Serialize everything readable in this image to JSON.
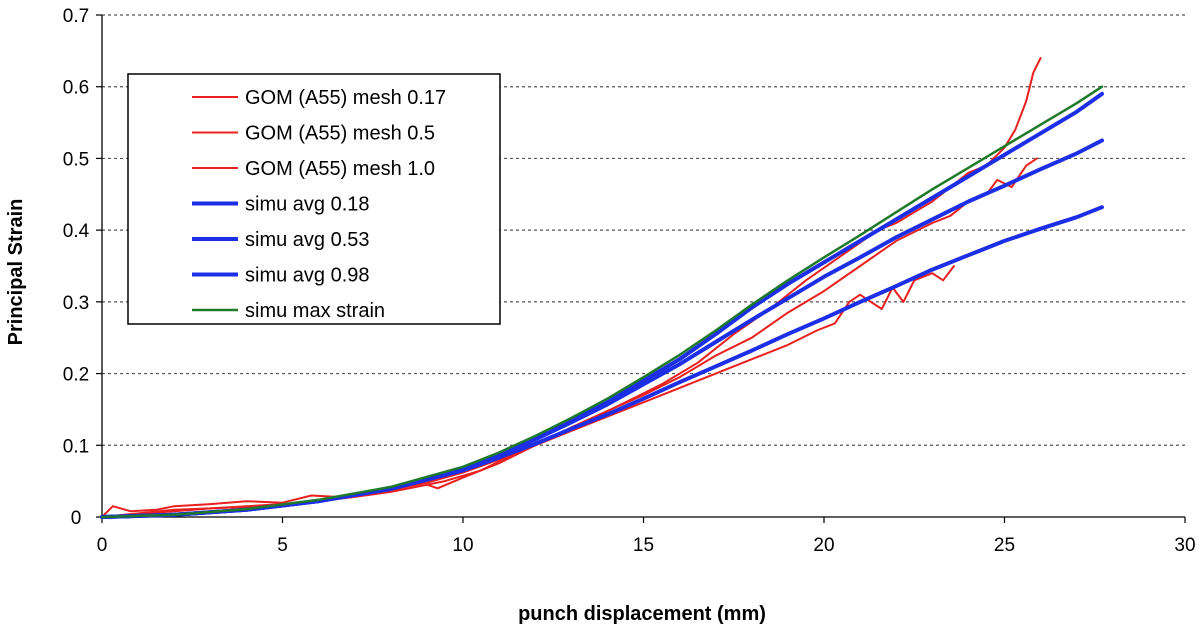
{
  "chart_data": {
    "type": "line",
    "xlabel": "punch displacement (mm)",
    "ylabel": "Principal Strain",
    "xlim": [
      0,
      30
    ],
    "ylim": [
      0,
      0.7
    ],
    "x_ticks": [
      "0",
      "5",
      "10",
      "15",
      "20",
      "25",
      "30"
    ],
    "y_ticks": [
      "0",
      "0.1",
      "0.2",
      "0.3",
      "0.4",
      "0.5",
      "0.6",
      "0.7"
    ],
    "grid": "horizontal dotted",
    "legend_position": "top-left",
    "series": [
      {
        "name": "GOM (A55) mesh 0.17",
        "color": "#e8201e",
        "width": 2,
        "points": [
          [
            0,
            0
          ],
          [
            0.3,
            0.015
          ],
          [
            0.8,
            0.008
          ],
          [
            1.5,
            0.01
          ],
          [
            2,
            0.015
          ],
          [
            3,
            0.018
          ],
          [
            4,
            0.022
          ],
          [
            5,
            0.02
          ],
          [
            5.8,
            0.03
          ],
          [
            6.5,
            0.028
          ],
          [
            7.5,
            0.032
          ],
          [
            8.5,
            0.04
          ],
          [
            9.5,
            0.05
          ],
          [
            10.5,
            0.065
          ],
          [
            11.5,
            0.09
          ],
          [
            12.5,
            0.11
          ],
          [
            13.5,
            0.135
          ],
          [
            14.5,
            0.16
          ],
          [
            15.5,
            0.185
          ],
          [
            16.5,
            0.215
          ],
          [
            17.5,
            0.255
          ],
          [
            18.5,
            0.29
          ],
          [
            19.5,
            0.33
          ],
          [
            20.5,
            0.365
          ],
          [
            21.5,
            0.4
          ],
          [
            22,
            0.41
          ],
          [
            22.5,
            0.425
          ],
          [
            23,
            0.44
          ],
          [
            23.5,
            0.46
          ],
          [
            24,
            0.48
          ],
          [
            24.5,
            0.49
          ],
          [
            25,
            0.515
          ],
          [
            25.3,
            0.54
          ],
          [
            25.6,
            0.58
          ],
          [
            25.8,
            0.62
          ],
          [
            26,
            0.64
          ]
        ]
      },
      {
        "name": "GOM (A55) mesh 0.5",
        "color": "#e8201e",
        "width": 2,
        "points": [
          [
            0,
            0
          ],
          [
            1,
            0.005
          ],
          [
            2,
            0.01
          ],
          [
            3,
            0.012
          ],
          [
            4,
            0.015
          ],
          [
            5,
            0.018
          ],
          [
            6,
            0.022
          ],
          [
            7,
            0.03
          ],
          [
            8,
            0.038
          ],
          [
            9,
            0.048
          ],
          [
            10,
            0.062
          ],
          [
            11,
            0.08
          ],
          [
            12,
            0.1
          ],
          [
            13,
            0.125
          ],
          [
            14,
            0.148
          ],
          [
            15,
            0.17
          ],
          [
            16,
            0.195
          ],
          [
            17,
            0.225
          ],
          [
            18,
            0.25
          ],
          [
            19,
            0.285
          ],
          [
            20,
            0.315
          ],
          [
            21,
            0.35
          ],
          [
            22,
            0.385
          ],
          [
            23,
            0.41
          ],
          [
            23.5,
            0.42
          ],
          [
            24,
            0.44
          ],
          [
            24.5,
            0.45
          ],
          [
            24.8,
            0.47
          ],
          [
            25.2,
            0.46
          ],
          [
            25.6,
            0.49
          ],
          [
            25.9,
            0.5
          ]
        ]
      },
      {
        "name": "GOM (A55) mesh 1.0",
        "color": "#e8201e",
        "width": 2,
        "points": [
          [
            0,
            0
          ],
          [
            1,
            0.004
          ],
          [
            2,
            0.008
          ],
          [
            3,
            0.012
          ],
          [
            4,
            0.014
          ],
          [
            5,
            0.018
          ],
          [
            6,
            0.022
          ],
          [
            7,
            0.028
          ],
          [
            8,
            0.035
          ],
          [
            9,
            0.045
          ],
          [
            9.3,
            0.04
          ],
          [
            10,
            0.055
          ],
          [
            11,
            0.075
          ],
          [
            12,
            0.1
          ],
          [
            13,
            0.12
          ],
          [
            14,
            0.14
          ],
          [
            15,
            0.16
          ],
          [
            16,
            0.18
          ],
          [
            17,
            0.2
          ],
          [
            18,
            0.22
          ],
          [
            19,
            0.24
          ],
          [
            19.8,
            0.26
          ],
          [
            20.3,
            0.27
          ],
          [
            20.7,
            0.3
          ],
          [
            21,
            0.31
          ],
          [
            21.3,
            0.3
          ],
          [
            21.6,
            0.29
          ],
          [
            21.9,
            0.32
          ],
          [
            22.2,
            0.3
          ],
          [
            22.5,
            0.33
          ],
          [
            23,
            0.34
          ],
          [
            23.3,
            0.33
          ],
          [
            23.6,
            0.35
          ]
        ]
      },
      {
        "name": "simu avg 0.18",
        "color": "#1c2ee6",
        "width": 4,
        "points": [
          [
            0,
            0
          ],
          [
            2,
            0.003
          ],
          [
            4,
            0.01
          ],
          [
            6,
            0.022
          ],
          [
            8,
            0.04
          ],
          [
            10,
            0.068
          ],
          [
            11,
            0.088
          ],
          [
            12,
            0.11
          ],
          [
            13,
            0.135
          ],
          [
            14,
            0.16
          ],
          [
            15,
            0.19
          ],
          [
            16,
            0.22
          ],
          [
            17,
            0.255
          ],
          [
            18,
            0.292
          ],
          [
            19,
            0.325
          ],
          [
            20,
            0.355
          ],
          [
            21,
            0.385
          ],
          [
            22,
            0.415
          ],
          [
            23,
            0.445
          ],
          [
            24,
            0.475
          ],
          [
            25,
            0.505
          ],
          [
            26,
            0.535
          ],
          [
            27,
            0.565
          ],
          [
            27.7,
            0.59
          ]
        ]
      },
      {
        "name": "simu avg 0.53",
        "color": "#1c2ee6",
        "width": 4,
        "points": [
          [
            0,
            0
          ],
          [
            2,
            0.003
          ],
          [
            4,
            0.01
          ],
          [
            6,
            0.022
          ],
          [
            8,
            0.04
          ],
          [
            10,
            0.068
          ],
          [
            11,
            0.087
          ],
          [
            12,
            0.108
          ],
          [
            13,
            0.132
          ],
          [
            14,
            0.157
          ],
          [
            15,
            0.185
          ],
          [
            16,
            0.213
          ],
          [
            17,
            0.244
          ],
          [
            18,
            0.275
          ],
          [
            19,
            0.305
          ],
          [
            20,
            0.335
          ],
          [
            21,
            0.362
          ],
          [
            22,
            0.39
          ],
          [
            23,
            0.415
          ],
          [
            24,
            0.44
          ],
          [
            25,
            0.462
          ],
          [
            26,
            0.485
          ],
          [
            27,
            0.507
          ],
          [
            27.7,
            0.525
          ]
        ]
      },
      {
        "name": "simu avg 0.98",
        "color": "#1c2ee6",
        "width": 4,
        "points": [
          [
            0,
            0
          ],
          [
            2,
            0.003
          ],
          [
            4,
            0.01
          ],
          [
            6,
            0.022
          ],
          [
            8,
            0.039
          ],
          [
            10,
            0.065
          ],
          [
            11,
            0.083
          ],
          [
            12,
            0.102
          ],
          [
            13,
            0.123
          ],
          [
            14,
            0.143
          ],
          [
            15,
            0.165
          ],
          [
            16,
            0.188
          ],
          [
            17,
            0.21
          ],
          [
            18,
            0.232
          ],
          [
            19,
            0.255
          ],
          [
            20,
            0.277
          ],
          [
            21,
            0.3
          ],
          [
            22,
            0.322
          ],
          [
            23,
            0.345
          ],
          [
            24,
            0.365
          ],
          [
            25,
            0.385
          ],
          [
            26,
            0.402
          ],
          [
            27,
            0.418
          ],
          [
            27.7,
            0.432
          ]
        ]
      },
      {
        "name": "simu max strain",
        "color": "#1e7a2a",
        "width": 2.5,
        "points": [
          [
            0,
            0
          ],
          [
            2,
            0.003
          ],
          [
            4,
            0.011
          ],
          [
            6,
            0.024
          ],
          [
            8,
            0.042
          ],
          [
            10,
            0.07
          ],
          [
            11,
            0.09
          ],
          [
            12,
            0.113
          ],
          [
            13,
            0.138
          ],
          [
            14,
            0.165
          ],
          [
            15,
            0.195
          ],
          [
            16,
            0.226
          ],
          [
            17,
            0.26
          ],
          [
            18,
            0.296
          ],
          [
            19,
            0.33
          ],
          [
            20,
            0.362
          ],
          [
            21,
            0.393
          ],
          [
            22,
            0.425
          ],
          [
            23,
            0.457
          ],
          [
            24,
            0.487
          ],
          [
            25,
            0.517
          ],
          [
            26,
            0.547
          ],
          [
            27,
            0.577
          ],
          [
            27.7,
            0.6
          ]
        ]
      }
    ]
  }
}
